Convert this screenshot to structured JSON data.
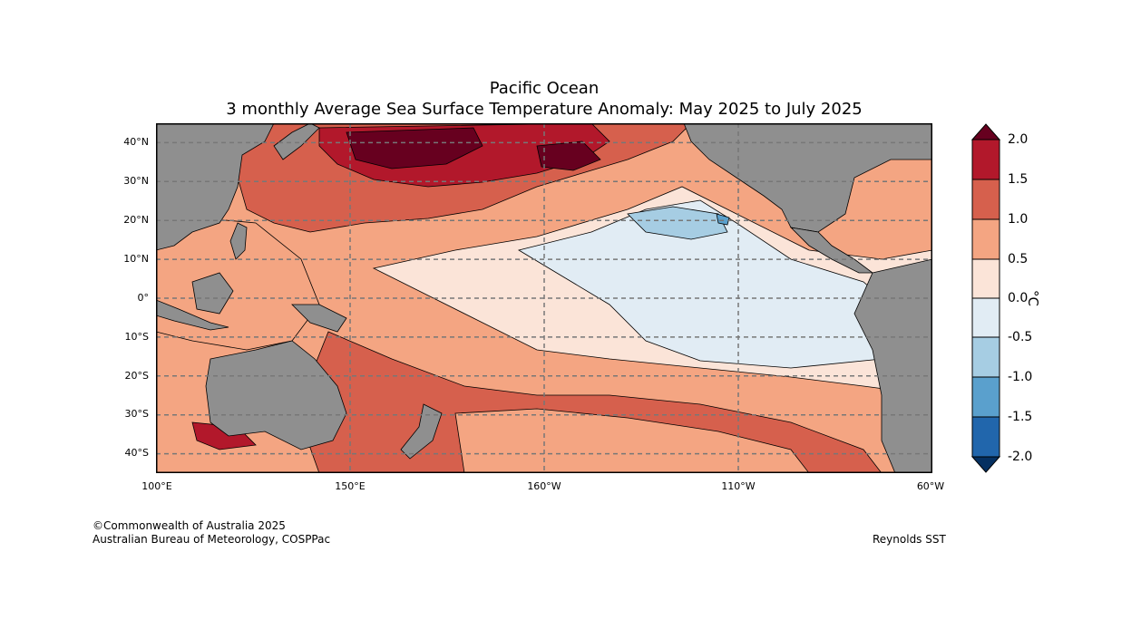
{
  "title": {
    "line1": "Pacific Ocean",
    "line2": "3 monthly Average Sea Surface Temperature Anomaly: May 2025 to July 2025"
  },
  "map": {
    "lat_ticks": [
      "40°N",
      "30°N",
      "20°N",
      "10°N",
      "0°",
      "10°S",
      "20°S",
      "30°S",
      "40°S"
    ],
    "lon_ticks": [
      "100°E",
      "150°E",
      "160°W",
      "110°W",
      "60°W"
    ],
    "lat_values": [
      40,
      30,
      20,
      10,
      0,
      -10,
      -20,
      -30,
      -40
    ],
    "lon_values": [
      100,
      150,
      200,
      250,
      300
    ],
    "lat_range": [
      -45,
      45
    ],
    "lon_range": [
      100,
      300
    ]
  },
  "colorbar": {
    "unit": "°C",
    "tick_labels": [
      "2.0",
      "1.5",
      "1.0",
      "0.5",
      "0.0",
      "-0.5",
      "-1.0",
      "-1.5",
      "-2.0"
    ],
    "levels": [
      2.0,
      1.5,
      1.0,
      0.5,
      0.0,
      -0.5,
      -1.0,
      -1.5,
      -2.0
    ],
    "colors": {
      "above_2_0": "#67001f",
      "1_5_to_2_0": "#b2182b",
      "1_0_to_1_5": "#d6604d",
      "0_5_to_1_0": "#f4a582",
      "0_0_to_0_5": "#fbe4d8",
      "neg_0_5_to_0_0": "#e1ecf4",
      "neg_1_0_to_neg_0_5": "#a6cde3",
      "neg_1_5_to_neg_1_0": "#5aa0cd",
      "neg_2_0_to_neg_1_5": "#2166ac",
      "below_neg_2_0": "#053061"
    },
    "land_color": "#8f8f8f"
  },
  "footer": {
    "copyright": "©Commonwealth of Australia 2025",
    "agency": "Australian Bureau of Meteorology, COSPPac",
    "source": "Reynolds SST"
  }
}
